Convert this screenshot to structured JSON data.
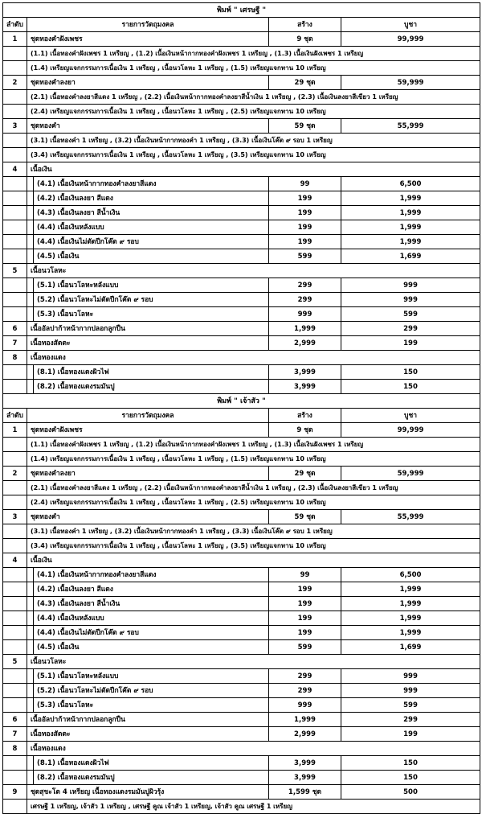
{
  "columns": {
    "index": "ลำดับ",
    "item": "รายการวัตถุมงคล",
    "qty": "สร้าง",
    "price": "บูชา"
  },
  "sections": [
    {
      "title": "พิมพ์ \" เศรษฐี \"",
      "groups": [
        {
          "no": "1",
          "name": "ชุดทองคำฝังเพชร",
          "qty": "9 ชุด",
          "price": "99,999",
          "notes": [
            "(1.1) เนื้อทองคำฝังเพชร 1 เหรียญ , (1.2) เนื้อเงินหน้ากากทองคำฝังเพชร 1 เหรียญ , (1.3) เนื้อเงินฝังเพชร 1 เหรียญ",
            "(1.4) เหรียญแจกกรรมการเนื้อเงิน 1 เหรียญ , เนื้อนวโลหะ 1 เหรียญ , (1.5) เหรียญแจกทาน 10 เหรียญ"
          ],
          "items": []
        },
        {
          "no": "2",
          "name": "ชุดทองคำลงยา",
          "qty": "29 ชุด",
          "price": "59,999",
          "notes": [
            "(2.1) เนื้อทองคำลงยาสีแดง 1 เหรียญ , (2.2) เนื้อเงินหน้ากากทองคำลงยาสีน้ำเงิน 1 เหรียญ , (2.3) เนื้อเงินลงยาสีเขียว 1 เหรียญ",
            "(2.4) เหรียญแจกกรรมการเนื้อเงิน 1 เหรียญ , เนื้อนวโลหะ 1 เหรียญ , (2.5) เหรียญแจกทาน 10 เหรียญ"
          ],
          "items": []
        },
        {
          "no": "3",
          "name": "ชุดทองคำ",
          "qty": "59 ชุด",
          "price": "55,999",
          "notes": [
            "(3.1) เนื้อทองคำ 1 เหรียญ , (3.2) เนื้อเงินหน้ากากทองคำ 1 เหรียญ , (3.3) เนื้อเงินโค๊ต ๙ รอบ 1 เหรียญ",
            "(3.4) เหรียญแจกกรรมการเนื้อเงิน 1 เหรียญ , เนื้อนวโลหะ 1 เหรียญ , (3.5) เหรียญแจกทาน 10 เหรียญ"
          ],
          "items": []
        },
        {
          "no": "4",
          "name": "เนื้อเงิน",
          "qty": "",
          "price": "",
          "notes": [],
          "items": [
            {
              "name": "(4.1) เนื้อเงินหน้ากากทองคำลงยาสีแดง",
              "qty": "99",
              "price": "6,500"
            },
            {
              "name": "(4.2) เนื้อเงินลงยา สีแดง",
              "qty": "199",
              "price": "1,999"
            },
            {
              "name": "(4.3) เนื้อเงินลงยา สีน้ำเงิน",
              "qty": "199",
              "price": "1,999"
            },
            {
              "name": "(4.4) เนื้อเงินหลังแบบ",
              "qty": "199",
              "price": "1,999"
            },
            {
              "name": "(4.4) เนื้อเงินไม่ตัดปีกโค๊ต ๙ รอบ",
              "qty": "199",
              "price": "1,999"
            },
            {
              "name": "(4.5) เนื้อเงิน",
              "qty": "599",
              "price": "1,699"
            }
          ]
        },
        {
          "no": "5",
          "name": "เนื้อนวโลหะ",
          "qty": "",
          "price": "",
          "notes": [],
          "items": [
            {
              "name": "(5.1) เนื้อนวโลหะหลังแบบ",
              "qty": "299",
              "price": "999"
            },
            {
              "name": "(5.2) เนื้อนวโลหะไม่ตัดปีกโค๊ต ๙ รอบ",
              "qty": "299",
              "price": "999"
            },
            {
              "name": "(5.3) เนื้อนวโลหะ",
              "qty": "999",
              "price": "599"
            }
          ]
        },
        {
          "no": "6",
          "name": "เนื้ออัลปาก้าหน้ากากปลอกลูกปืน",
          "qty": "1,999",
          "price": "299",
          "notes": [],
          "items": []
        },
        {
          "no": "7",
          "name": "เนื้อทองสัตตะ",
          "qty": "2,999",
          "price": "199",
          "notes": [],
          "items": []
        },
        {
          "no": "8",
          "name": "เนื้อทองแดง",
          "qty": "",
          "price": "",
          "notes": [],
          "items": [
            {
              "name": "(8.1) เนื้อทองแดงผิวไฟ",
              "qty": "3,999",
              "price": "150"
            },
            {
              "name": "(8.2) เนื้อทองแดงรมมันปู",
              "qty": "3,999",
              "price": "150"
            }
          ]
        }
      ]
    },
    {
      "title": "พิมพ์ \" เจ้าสัว \"",
      "groups": [
        {
          "no": "1",
          "name": "ชุดทองคำฝังเพชร",
          "qty": "9 ชุด",
          "price": "99,999",
          "notes": [
            "(1.1) เนื้อทองคำฝังเพชร 1 เหรียญ , (1.2) เนื้อเงินหน้ากากทองคำฝังเพชร 1 เหรียญ , (1.3) เนื้อเงินฝังเพชร 1 เหรียญ",
            "(1.4) เหรียญแจกกรรมการเนื้อเงิน 1 เหรียญ , เนื้อนวโลหะ 1 เหรียญ , (1.5) เหรียญแจกทาน 10 เหรียญ"
          ],
          "items": []
        },
        {
          "no": "2",
          "name": "ชุดทองคำลงยา",
          "qty": "29 ชุด",
          "price": "59,999",
          "notes": [
            "(2.1) เนื้อทองคำลงยาสีแดง 1 เหรียญ , (2.2) เนื้อเงินหน้ากากทองคำลงยาสีน้ำเงิน 1 เหรียญ , (2.3) เนื้อเงินลงยาสีเขียว 1 เหรียญ",
            "(2.4) เหรียญแจกกรรมการเนื้อเงิน 1 เหรียญ , เนื้อนวโลหะ 1 เหรียญ , (2.5) เหรียญแจกทาน 10 เหรียญ"
          ],
          "items": []
        },
        {
          "no": "3",
          "name": "ชุดทองคำ",
          "qty": "59 ชุด",
          "price": "55,999",
          "notes": [
            "(3.1) เนื้อทองคำ 1 เหรียญ , (3.2) เนื้อเงินหน้ากากทองคำ 1 เหรียญ , (3.3) เนื้อเงินโค๊ต ๙ รอบ 1 เหรียญ",
            "(3.4) เหรียญแจกกรรมการเนื้อเงิน 1 เหรียญ , เนื้อนวโลหะ 1 เหรียญ , (3.5) เหรียญแจกทาน 10 เหรียญ"
          ],
          "items": []
        },
        {
          "no": "4",
          "name": "เนื้อเงิน",
          "qty": "",
          "price": "",
          "notes": [],
          "items": [
            {
              "name": "(4.1) เนื้อเงินหน้ากากทองคำลงยาสีแดง",
              "qty": "99",
              "price": "6,500"
            },
            {
              "name": "(4.2) เนื้อเงินลงยา สีแดง",
              "qty": "199",
              "price": "1,999"
            },
            {
              "name": "(4.3) เนื้อเงินลงยา สีน้ำเงิน",
              "qty": "199",
              "price": "1,999"
            },
            {
              "name": "(4.4) เนื้อเงินหลังแบบ",
              "qty": "199",
              "price": "1,999"
            },
            {
              "name": "(4.4) เนื้อเงินไม่ตัดปีกโค๊ต ๙ รอบ",
              "qty": "199",
              "price": "1,999"
            },
            {
              "name": "(4.5) เนื้อเงิน",
              "qty": "599",
              "price": "1,699"
            }
          ]
        },
        {
          "no": "5",
          "name": "เนื้อนวโลหะ",
          "qty": "",
          "price": "",
          "notes": [],
          "items": [
            {
              "name": "(5.1) เนื้อนวโลหะหลังแบบ",
              "qty": "299",
              "price": "999"
            },
            {
              "name": "(5.2) เนื้อนวโลหะไม่ตัดปีกโค๊ต ๙ รอบ",
              "qty": "299",
              "price": "999"
            },
            {
              "name": "(5.3) เนื้อนวโลหะ",
              "qty": "999",
              "price": "599"
            }
          ]
        },
        {
          "no": "6",
          "name": "เนื้ออัลปาก้าหน้ากากปลอกลูกปืน",
          "qty": "1,999",
          "price": "299",
          "notes": [],
          "items": []
        },
        {
          "no": "7",
          "name": "เนื้อทองสัตตะ",
          "qty": "2,999",
          "price": "199",
          "notes": [],
          "items": []
        },
        {
          "no": "8",
          "name": "เนื้อทองแดง",
          "qty": "",
          "price": "",
          "notes": [],
          "items": [
            {
              "name": "(8.1) เนื้อทองแดงผิวไฟ",
              "qty": "3,999",
              "price": "150"
            },
            {
              "name": "(8.2) เนื้อทองแดงรมมันปู",
              "qty": "3,999",
              "price": "150"
            }
          ]
        },
        {
          "no": "9",
          "name": "ชุดสุขะโต  4  เหรียญ  เนื้อทองแดงรมมันปูผิวรุ้ง",
          "qty": "1,599 ชุด",
          "price": "500",
          "notes": [
            "เศรษฐี 1 เหรียญ, เจ้าสัว 1 เหรียญ , เศรษฐี คูณ เจ้าสัว 1 เหรียญ, เจ้าสัว คูณ เศรษฐี 1 เหรียญ"
          ],
          "items": []
        }
      ]
    }
  ]
}
